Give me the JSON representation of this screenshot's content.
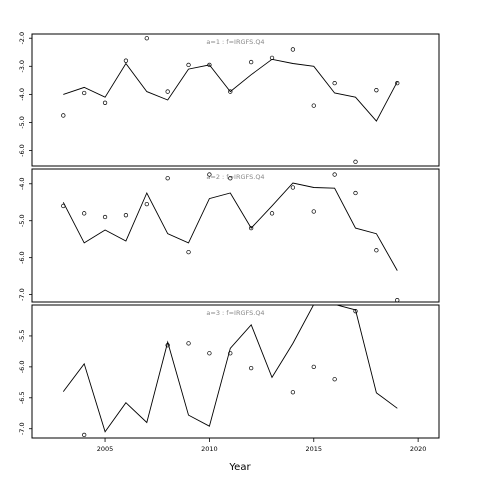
{
  "chart_data": {
    "type": "line",
    "xlabel": "Year",
    "x_ticks": [
      2005,
      2010,
      2015,
      2020
    ],
    "xlim": [
      2001.5,
      2021
    ],
    "panels": [
      {
        "label": "a=1  :  f=IRGFS.Q4",
        "ylim": [
          -6.55,
          -1.85
        ],
        "yticks": [
          -2,
          -3,
          -4,
          -5,
          -6
        ],
        "observed": {
          "x": [
            2003,
            2004,
            2005,
            2006,
            2007,
            2008,
            2009,
            2010,
            2011,
            2012,
            2013,
            2014,
            2015,
            2016,
            2017,
            2018,
            2019
          ],
          "y": [
            -4.75,
            -3.95,
            -4.3,
            -2.8,
            -2.0,
            -3.9,
            -2.95,
            -2.95,
            -3.9,
            -2.85,
            -2.7,
            -2.4,
            -4.4,
            -3.6,
            -6.4,
            -3.85,
            -3.6
          ]
        },
        "fitted": {
          "x": [
            2003,
            2004,
            2005,
            2006,
            2007,
            2008,
            2009,
            2010,
            2011,
            2012,
            2013,
            2014,
            2015,
            2016,
            2017,
            2018,
            2019
          ],
          "y": [
            -4.0,
            -3.75,
            -4.1,
            -2.9,
            -3.9,
            -4.2,
            -3.1,
            -2.95,
            -3.9,
            -3.3,
            -2.75,
            -2.9,
            -3.0,
            -3.95,
            -4.1,
            -4.95,
            -3.55
          ]
        }
      },
      {
        "label": "a=2  :  f=IRGFS.Q4",
        "ylim": [
          -7.2,
          -3.6
        ],
        "yticks": [
          -4.0,
          -5.0,
          -6.0,
          -7.0
        ],
        "observed": {
          "x": [
            2003,
            2004,
            2005,
            2006,
            2007,
            2008,
            2009,
            2010,
            2011,
            2012,
            2013,
            2014,
            2015,
            2016,
            2017,
            2018,
            2019
          ],
          "y": [
            -4.6,
            -4.8,
            -4.9,
            -4.85,
            -4.55,
            -3.85,
            -5.85,
            -3.75,
            -3.85,
            -5.2,
            -4.8,
            -4.1,
            -4.75,
            -3.75,
            -4.25,
            -5.8,
            -7.15
          ]
        },
        "fitted": {
          "x": [
            2003,
            2004,
            2005,
            2006,
            2007,
            2008,
            2009,
            2010,
            2011,
            2012,
            2013,
            2014,
            2015,
            2016,
            2017,
            2018,
            2019
          ],
          "y": [
            -4.5,
            -5.6,
            -5.25,
            -5.55,
            -4.25,
            -5.35,
            -5.6,
            -4.4,
            -4.25,
            -5.2,
            -4.6,
            -3.98,
            -4.1,
            -4.12,
            -5.2,
            -5.35,
            -6.35
          ]
        }
      },
      {
        "label": "a=3  :  f=IRGFS.Q4",
        "ylim": [
          -7.15,
          -5.0
        ],
        "yticks": [
          -5.5,
          -6.0,
          -6.5,
          -7.0
        ],
        "observed": {
          "x": [
            2004,
            2008,
            2009,
            2010,
            2011,
            2012,
            2014,
            2015,
            2016,
            2017
          ],
          "y": [
            -7.1,
            -5.65,
            -5.62,
            -5.78,
            -5.78,
            -6.02,
            -6.41,
            -6.0,
            -6.2,
            -5.1
          ]
        },
        "fitted": {
          "x": [
            2003,
            2004,
            2005,
            2006,
            2007,
            2008,
            2009,
            2010,
            2011,
            2012,
            2013,
            2014,
            2015,
            2016,
            2017,
            2018,
            2019
          ],
          "y": [
            -6.4,
            -5.95,
            -7.05,
            -6.58,
            -6.9,
            -5.6,
            -6.78,
            -6.96,
            -5.7,
            -5.32,
            -6.17,
            -5.62,
            -4.99,
            -4.99,
            -5.08,
            -6.42,
            -6.67
          ]
        }
      }
    ]
  }
}
